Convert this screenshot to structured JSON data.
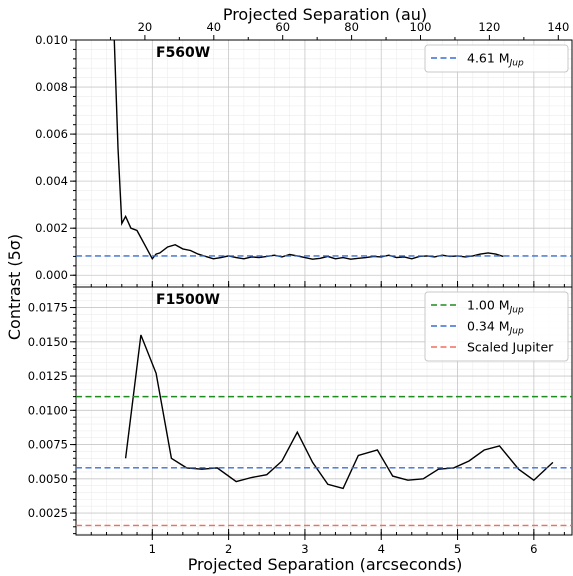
{
  "chart_data": [
    {
      "type": "line",
      "panel_label": "F560W",
      "xlabel": "Projected Separation (arcseconds)",
      "xlabel_top": "Projected Separation (au)",
      "ylabel": "Contrast (5σ)",
      "xlim": [
        0,
        6.5
      ],
      "ylim": [
        -0.0005,
        0.01
      ],
      "yticks": [
        "0.000",
        "0.002",
        "0.004",
        "0.006",
        "0.008",
        "0.010"
      ],
      "top_ticks": [
        20,
        40,
        60,
        80,
        100,
        120,
        140
      ],
      "grid": true,
      "legend_position": "top-right",
      "series": [
        {
          "name": "",
          "color": "#000000",
          "style": "solid",
          "x": [
            0.5,
            0.55,
            0.6,
            0.65,
            0.72,
            0.8,
            0.9,
            1.0,
            1.05,
            1.1,
            1.2,
            1.3,
            1.4,
            1.5,
            1.6,
            1.7,
            1.8,
            1.9,
            2.0,
            2.1,
            2.2,
            2.3,
            2.4,
            2.5,
            2.6,
            2.7,
            2.8,
            2.9,
            3.0,
            3.1,
            3.2,
            3.3,
            3.4,
            3.5,
            3.6,
            3.7,
            3.8,
            3.9,
            4.0,
            4.1,
            4.2,
            4.3,
            4.4,
            4.5,
            4.6,
            4.7,
            4.8,
            4.9,
            5.0,
            5.1,
            5.2,
            5.3,
            5.4,
            5.5,
            5.6
          ],
          "y": [
            0.0101,
            0.0054,
            0.0022,
            0.0025,
            0.002,
            0.0019,
            0.0013,
            0.0007,
            0.0009,
            0.00095,
            0.0012,
            0.0013,
            0.00112,
            0.00105,
            0.0009,
            0.0008,
            0.0007,
            0.00075,
            0.00082,
            0.00075,
            0.0007,
            0.00078,
            0.00075,
            0.0008,
            0.00085,
            0.00078,
            0.00088,
            0.00082,
            0.00075,
            0.00068,
            0.00072,
            0.0008,
            0.0007,
            0.00075,
            0.00068,
            0.00072,
            0.00075,
            0.0008,
            0.00078,
            0.00085,
            0.00075,
            0.00078,
            0.0007,
            0.0008,
            0.00082,
            0.00078,
            0.00085,
            0.0008,
            0.00082,
            0.00078,
            0.00082,
            0.0009,
            0.00095,
            0.0009,
            0.0008
          ]
        },
        {
          "name": "4.61 M_Jup",
          "legend_main": "4.61 M",
          "legend_sub": "Jup",
          "color": "#3b6fd4",
          "style": "dashed",
          "hline": 0.00082
        }
      ]
    },
    {
      "type": "line",
      "panel_label": "F1500W",
      "xlabel": "Projected Separation (arcseconds)",
      "ylabel": "Contrast (5σ)",
      "xlim": [
        0,
        6.5
      ],
      "ylim": [
        0.0009,
        0.019
      ],
      "yticks": [
        "0.0025",
        "0.0050",
        "0.0075",
        "0.0100",
        "0.0125",
        "0.0150",
        "0.0175"
      ],
      "xticks": [
        "1",
        "2",
        "3",
        "4",
        "5",
        "6"
      ],
      "grid": true,
      "legend_position": "top-right",
      "series": [
        {
          "name": "",
          "color": "#000000",
          "style": "solid",
          "x": [
            0.65,
            0.85,
            1.05,
            1.25,
            1.45,
            1.65,
            1.85,
            2.1,
            2.3,
            2.5,
            2.7,
            2.9,
            3.1,
            3.3,
            3.5,
            3.7,
            3.95,
            4.15,
            4.35,
            4.55,
            4.75,
            4.95,
            5.15,
            5.35,
            5.55,
            5.8,
            6.0,
            6.25
          ],
          "y": [
            0.0065,
            0.0155,
            0.0127,
            0.0065,
            0.0058,
            0.0057,
            0.0058,
            0.0048,
            0.0051,
            0.0053,
            0.0063,
            0.0084,
            0.0062,
            0.0046,
            0.0043,
            0.0067,
            0.0071,
            0.0052,
            0.0049,
            0.005,
            0.0057,
            0.0058,
            0.0063,
            0.0071,
            0.0074,
            0.0057,
            0.0049,
            0.0062
          ]
        },
        {
          "name": "1.00 M_Jup",
          "legend_main": "1.00 M",
          "legend_sub": "Jup",
          "color": "#1e8c1e",
          "style": "dashed",
          "hline": 0.011
        },
        {
          "name": "0.34 M_Jup",
          "legend_main": "0.34 M",
          "legend_sub": "Jup",
          "color": "#3b6fd4",
          "style": "dashed",
          "hline": 0.0058
        },
        {
          "name": "Scaled Jupiter",
          "legend_main": "Scaled Jupiter",
          "legend_sub": "",
          "color": "#f26f5e",
          "style": "dashed",
          "hline": 0.0016
        }
      ]
    }
  ]
}
